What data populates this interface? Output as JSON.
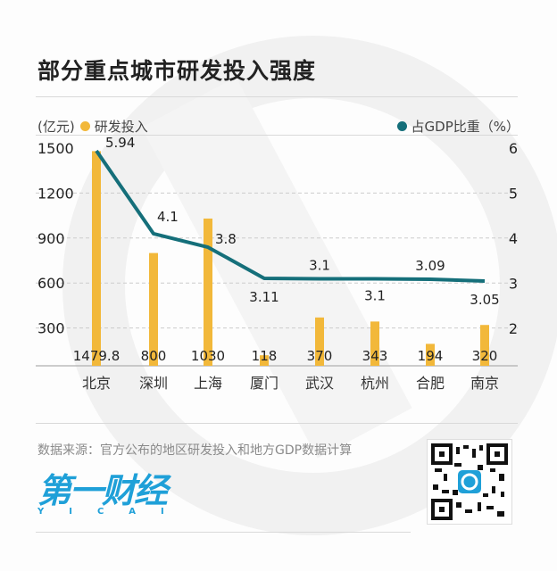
{
  "title": "部分重点城市研发投入强度",
  "legend": {
    "left_unit": "(亿元)",
    "left_series": "研发投入",
    "right_series": "占GDP比重（%）"
  },
  "colors": {
    "bar": "#f2b83a",
    "line": "#156f7a",
    "grid": "#cccccc"
  },
  "source": "数据来源：官方公布的地区研发投入和地方GDP数据计算",
  "logo": {
    "cn": "第一财经",
    "en": "YICAI"
  },
  "chart_data": {
    "type": "bar+line",
    "title": "部分重点城市研发投入强度",
    "categories": [
      "北京",
      "深圳",
      "上海",
      "厦门",
      "武汉",
      "杭州",
      "合肥",
      "南京"
    ],
    "series": [
      {
        "name": "研发投入",
        "type": "bar",
        "axis": "left",
        "unit": "亿元",
        "values": [
          1479.8,
          800,
          1030,
          118,
          370,
          343,
          194,
          320
        ]
      },
      {
        "name": "占GDP比重",
        "type": "line",
        "axis": "right",
        "unit": "%",
        "values": [
          5.94,
          4.1,
          3.8,
          3.11,
          3.1,
          3.1,
          3.09,
          3.05
        ]
      }
    ],
    "left_axis": {
      "label": "(亿元)",
      "ticks": [
        300,
        600,
        900,
        1200,
        1500
      ],
      "ylim": [
        0,
        1500
      ]
    },
    "right_axis": {
      "label": "(%)",
      "ticks": [
        2,
        3,
        4,
        5,
        6
      ],
      "ylim": [
        1.5,
        6
      ]
    },
    "grid": "dashed horizontal",
    "legend_position": "top"
  }
}
